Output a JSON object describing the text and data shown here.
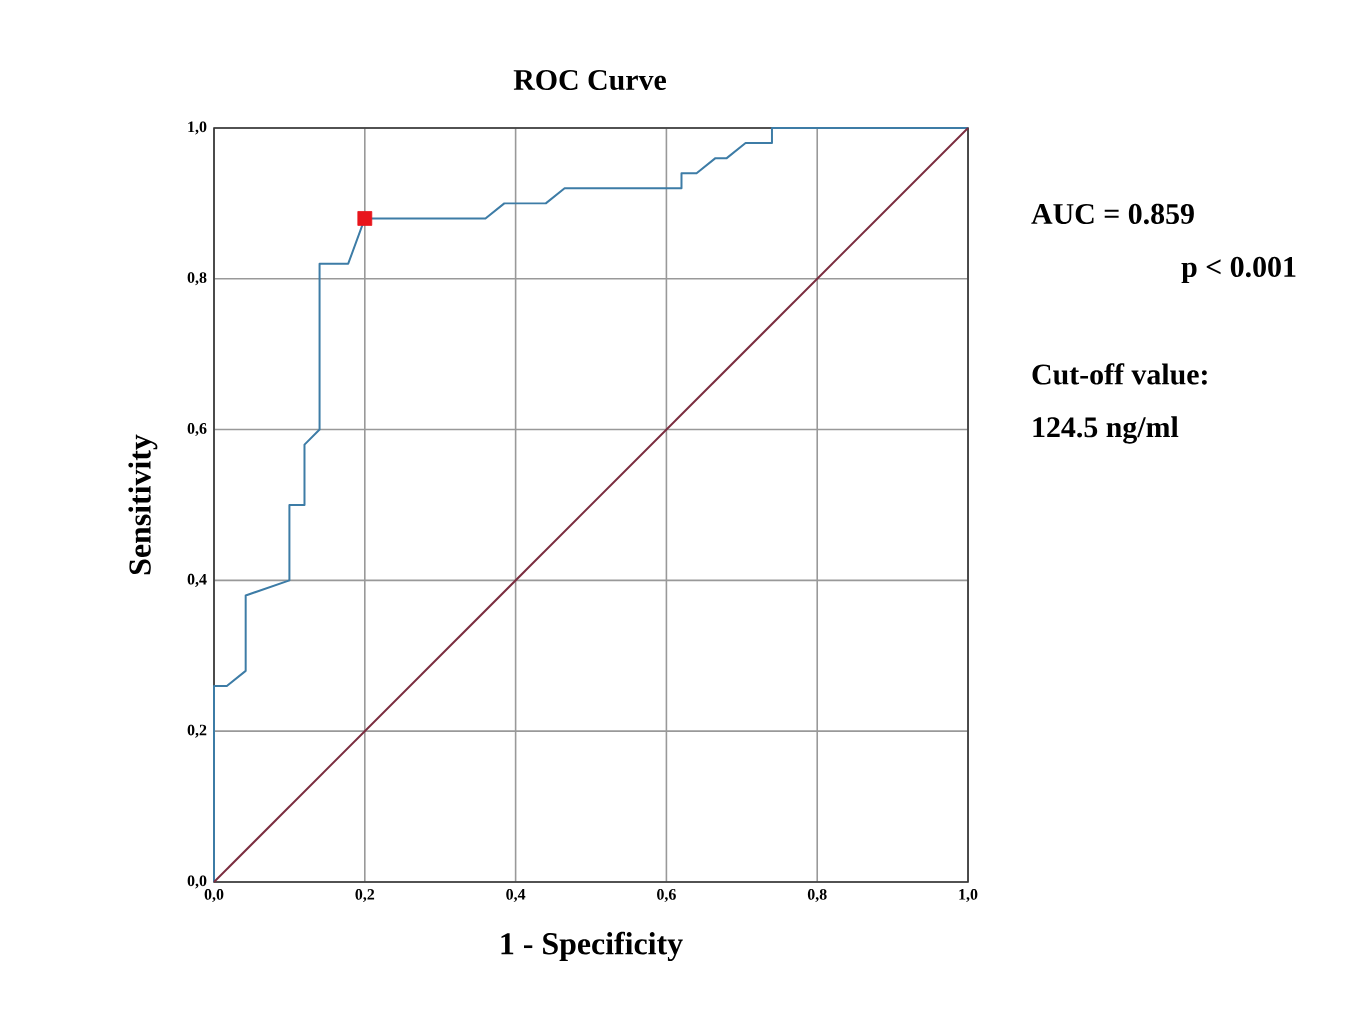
{
  "chart_data": {
    "type": "line",
    "title": "ROC Curve",
    "xlabel": "1 - Specificity",
    "ylabel": "Sensitivity",
    "xlim": [
      0,
      1
    ],
    "ylim": [
      0,
      1
    ],
    "xticks": [
      {
        "value": 0,
        "label": "0,0"
      },
      {
        "value": 0.2,
        "label": "0,2"
      },
      {
        "value": 0.4,
        "label": "0,4"
      },
      {
        "value": 0.6,
        "label": "0,6"
      },
      {
        "value": 0.8,
        "label": "0,8"
      },
      {
        "value": 1,
        "label": "1,0"
      }
    ],
    "yticks": [
      {
        "value": 0,
        "label": "0,0"
      },
      {
        "value": 0.2,
        "label": "0,2"
      },
      {
        "value": 0.4,
        "label": "0,4"
      },
      {
        "value": 0.6,
        "label": "0,6"
      },
      {
        "value": 0.8,
        "label": "0,8"
      },
      {
        "value": 1,
        "label": "1,0"
      }
    ],
    "grid": true,
    "line_style": "solid",
    "series": [
      {
        "color": "#3d7ca6",
        "x": [
          0,
          0,
          0.017,
          0.042,
          0.042,
          0.1,
          0.1,
          0.12,
          0.12,
          0.14,
          0.14,
          0.178,
          0.2,
          0.36,
          0.385,
          0.44,
          0.465,
          0.62,
          0.62,
          0.64,
          0.665,
          0.68,
          0.705,
          0.74,
          0.74,
          1
        ],
        "values": [
          0,
          0.26,
          0.26,
          0.28,
          0.38,
          0.4,
          0.5,
          0.5,
          0.58,
          0.6,
          0.82,
          0.82,
          0.88,
          0.88,
          0.9,
          0.9,
          0.92,
          0.92,
          0.94,
          0.94,
          0.96,
          0.96,
          0.98,
          0.98,
          1,
          1
        ]
      },
      {
        "color": "#7b2d3f",
        "x": [
          0,
          1
        ],
        "values": [
          0,
          1
        ]
      },
      {
        "type": "scatter",
        "color": "#e8151c",
        "marker": "square",
        "x": [
          0.2
        ],
        "values": [
          0.88
        ]
      }
    ],
    "annotations": [
      "AUC = 0.859",
      "p < 0.001",
      "Cut-off value:",
      "124.5 ng/ml"
    ]
  }
}
